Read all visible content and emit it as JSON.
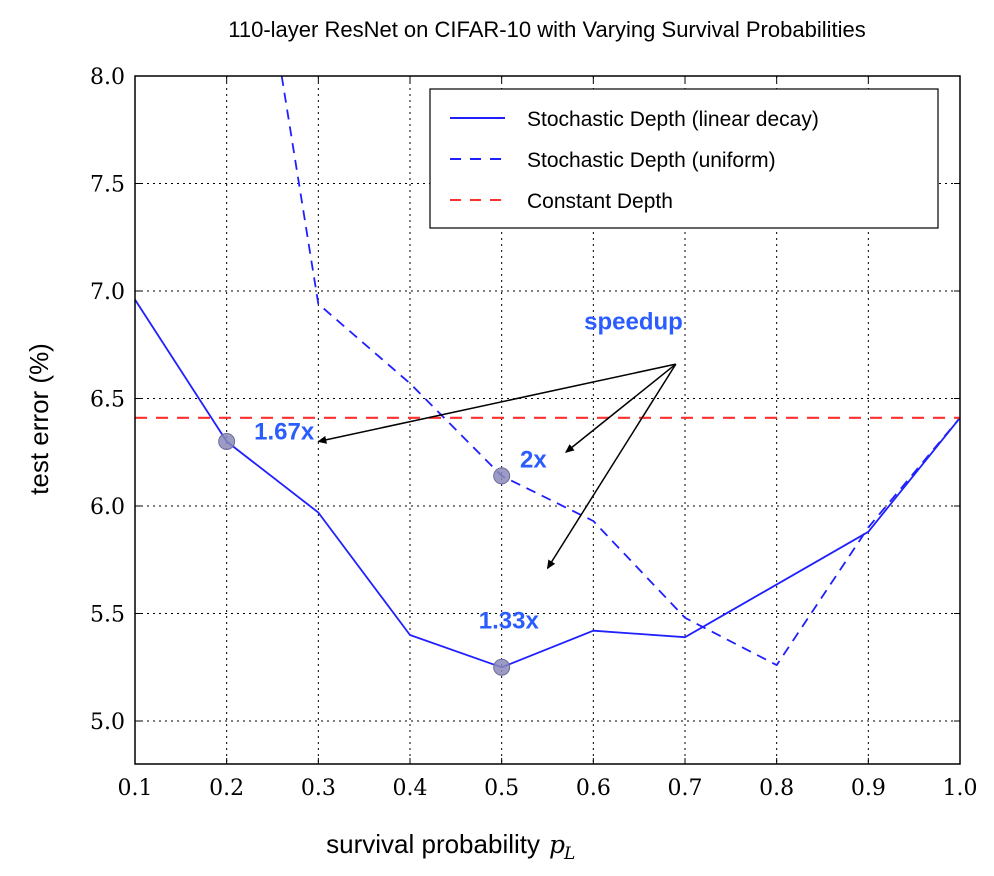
{
  "chart_data": {
    "type": "line",
    "title": "110-layer ResNet on CIFAR-10 with Varying Survival Probabilities",
    "xlabel": "survival probability",
    "xlabel_symbol": "p",
    "xlabel_subscript": "L",
    "ylabel": "test error (%)",
    "xlim": [
      0.1,
      1.0
    ],
    "ylim": [
      4.8,
      8.0
    ],
    "grid": true,
    "legend_position": "top-right",
    "x_ticks": [
      0.1,
      0.2,
      0.3,
      0.4,
      0.5,
      0.6,
      0.7,
      0.8,
      0.9,
      1.0
    ],
    "x_tick_labels": [
      "0.1",
      "0.2",
      "0.3",
      "0.4",
      "0.5",
      "0.6",
      "0.7",
      "0.8",
      "0.9",
      "1.0"
    ],
    "y_ticks": [
      5.0,
      5.5,
      6.0,
      6.5,
      7.0,
      7.5,
      8.0
    ],
    "y_tick_labels": [
      "5.0",
      "5.5",
      "6.0",
      "6.5",
      "7.0",
      "7.5",
      "8.0"
    ],
    "series": [
      {
        "name": "Stochastic Depth (linear decay)",
        "style": "solid",
        "color": "#2020ff",
        "x": [
          0.1,
          0.2,
          0.3,
          0.4,
          0.5,
          0.6,
          0.7,
          0.9,
          1.0
        ],
        "y": [
          6.96,
          6.3,
          5.97,
          5.4,
          5.25,
          5.42,
          5.39,
          5.88,
          6.41
        ]
      },
      {
        "name": "Stochastic Depth (uniform)",
        "style": "dashed",
        "color": "#2020ff",
        "x": [
          0.26,
          0.3,
          0.4,
          0.5,
          0.6,
          0.7,
          0.8,
          0.9,
          1.0
        ],
        "y": [
          8.0,
          6.94,
          6.57,
          6.14,
          5.93,
          5.48,
          5.26,
          5.9,
          6.41
        ]
      },
      {
        "name": "Constant Depth",
        "style": "dashed",
        "color": "#ff3030",
        "x": [
          0.1,
          1.0
        ],
        "y": [
          6.41,
          6.41
        ]
      }
    ],
    "highlight_points": [
      {
        "x": 0.2,
        "y": 6.3
      },
      {
        "x": 0.5,
        "y": 6.14
      },
      {
        "x": 0.5,
        "y": 5.25
      }
    ],
    "annotations": {
      "header": "speedup",
      "header_x": 0.59,
      "header_y": 6.82,
      "arrow_origin": {
        "x": 0.69,
        "y": 6.66
      },
      "items": [
        {
          "label": "1.67x",
          "x": 0.23,
          "y": 6.31,
          "tip": {
            "x": 0.3,
            "y": 6.3
          }
        },
        {
          "label": "2x",
          "x": 0.52,
          "y": 6.18,
          "tip": {
            "x": 0.57,
            "y": 6.25
          }
        },
        {
          "label": "1.33x",
          "x": 0.475,
          "y": 5.43,
          "tip": {
            "x": 0.55,
            "y": 5.71
          }
        }
      ],
      "color": "#2a5cff"
    }
  }
}
